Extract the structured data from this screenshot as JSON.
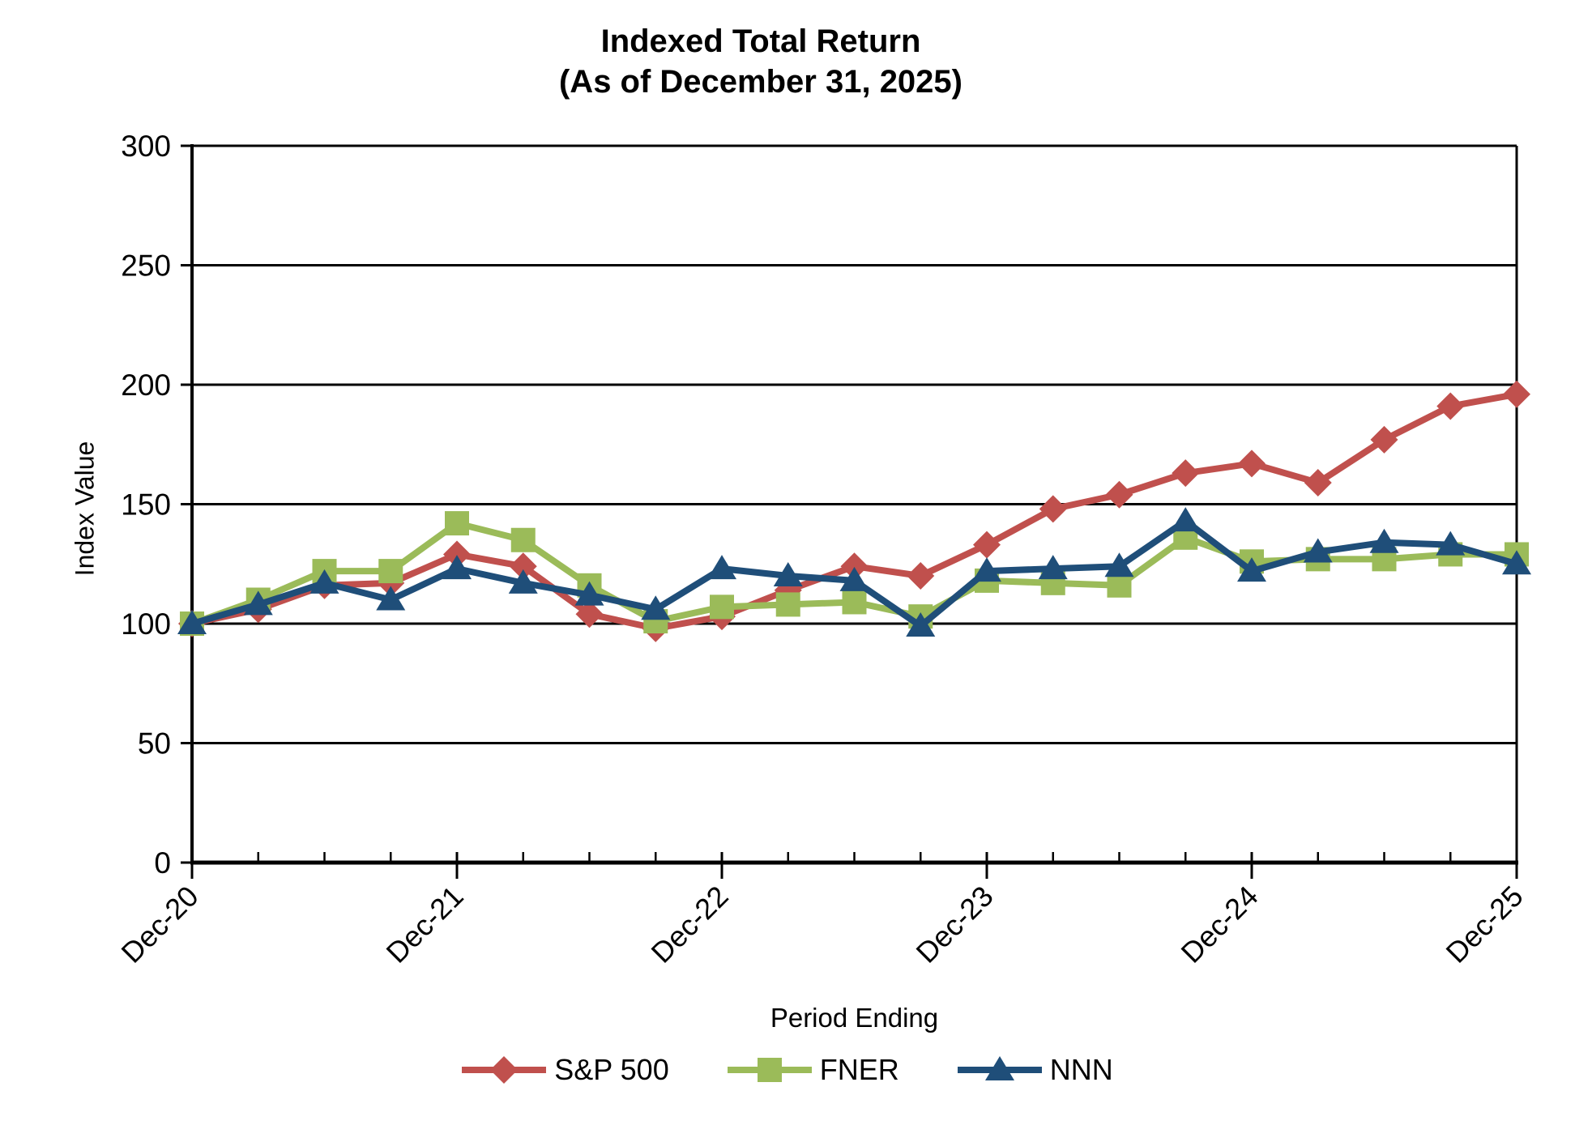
{
  "chart_data": {
    "type": "line",
    "title": "Indexed Total Return",
    "subtitle": "(As of December 31, 2025)",
    "frequency": "quarterly",
    "x_axis": {
      "title": "Period Ending",
      "major_tick_labels": [
        "Dec-20",
        "Dec-21",
        "Dec-22",
        "Dec-23",
        "Dec-24",
        "Dec-25"
      ],
      "minor_ticks_per_year": 4,
      "points": 21
    },
    "y_axis": {
      "title": "Index Value",
      "min": 0,
      "max": 300,
      "step": 50,
      "tick_labels": [
        "0",
        "50",
        "100",
        "150",
        "200",
        "250",
        "300"
      ]
    },
    "gridlines": "horizontal, black, at every 50",
    "legend_position": "bottom",
    "series": [
      {
        "name": "S&P 500",
        "color": "#C0504D",
        "marker": "diamond",
        "values": [
          100,
          106,
          116,
          117,
          129,
          124,
          104,
          98,
          103,
          114,
          124,
          120,
          133,
          148,
          154,
          163,
          167,
          159,
          177,
          191,
          196
        ]
      },
      {
        "name": "FNER",
        "color": "#9BBB59",
        "marker": "square",
        "values": [
          100,
          110,
          122,
          122,
          142,
          135,
          116,
          101,
          107,
          108,
          109,
          103,
          118,
          117,
          116,
          136,
          126,
          127,
          127,
          129,
          129
        ]
      },
      {
        "name": "NNN",
        "color": "#1F4E79",
        "marker": "triangle",
        "values": [
          100,
          108,
          117,
          110,
          123,
          117,
          112,
          106,
          123,
          120,
          118,
          99,
          122,
          123,
          124,
          143,
          122,
          130,
          134,
          133,
          125
        ]
      }
    ]
  }
}
